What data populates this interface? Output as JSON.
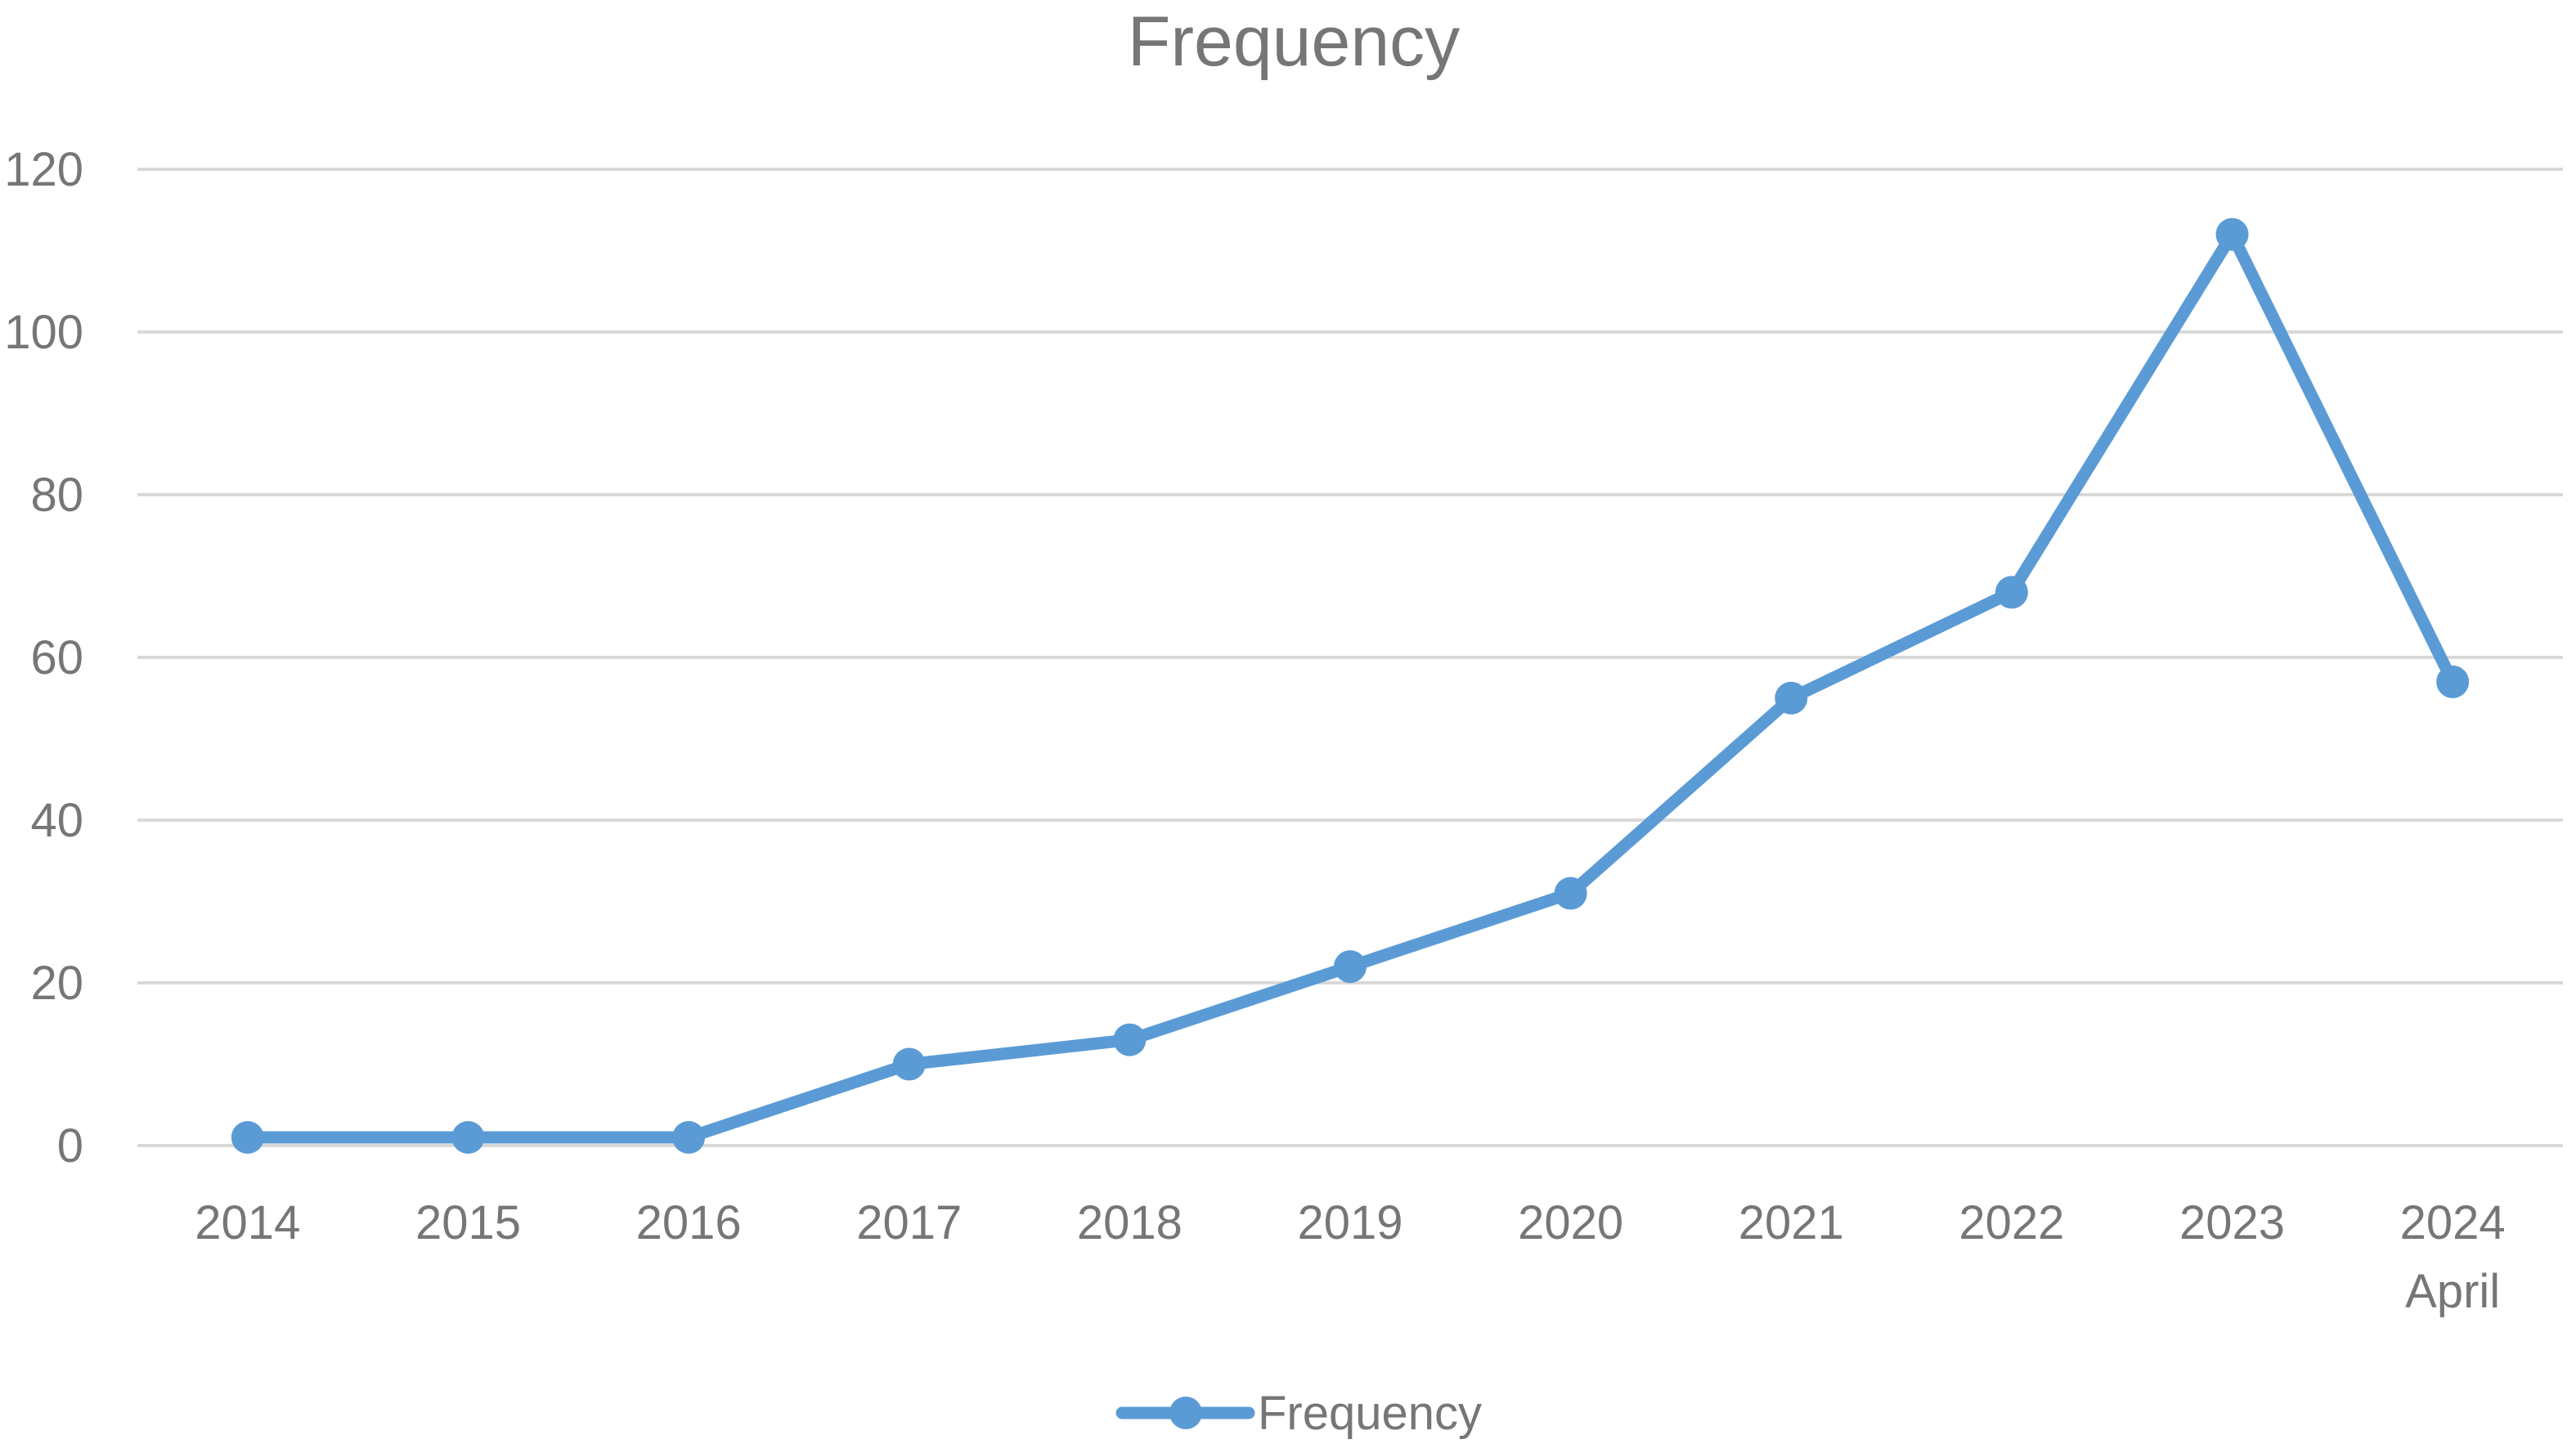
{
  "chart_data": {
    "type": "line",
    "title": "Frequency",
    "xlabel": "",
    "ylabel": "",
    "categories": [
      [
        "2014"
      ],
      [
        "2015"
      ],
      [
        "2016"
      ],
      [
        "2017"
      ],
      [
        "2018"
      ],
      [
        "2019"
      ],
      [
        "2020"
      ],
      [
        "2021"
      ],
      [
        "2022"
      ],
      [
        "2023"
      ],
      [
        "2024",
        "April"
      ]
    ],
    "series": [
      {
        "name": "Frequency",
        "values": [
          1,
          1,
          1,
          10,
          13,
          22,
          31,
          55,
          68,
          112,
          57
        ],
        "color": "#5b9bd5"
      }
    ],
    "ylim": [
      0,
      120
    ],
    "yticks": [
      0,
      20,
      40,
      60,
      80,
      100,
      120
    ],
    "grid": true,
    "legend_position": "bottom-center"
  }
}
